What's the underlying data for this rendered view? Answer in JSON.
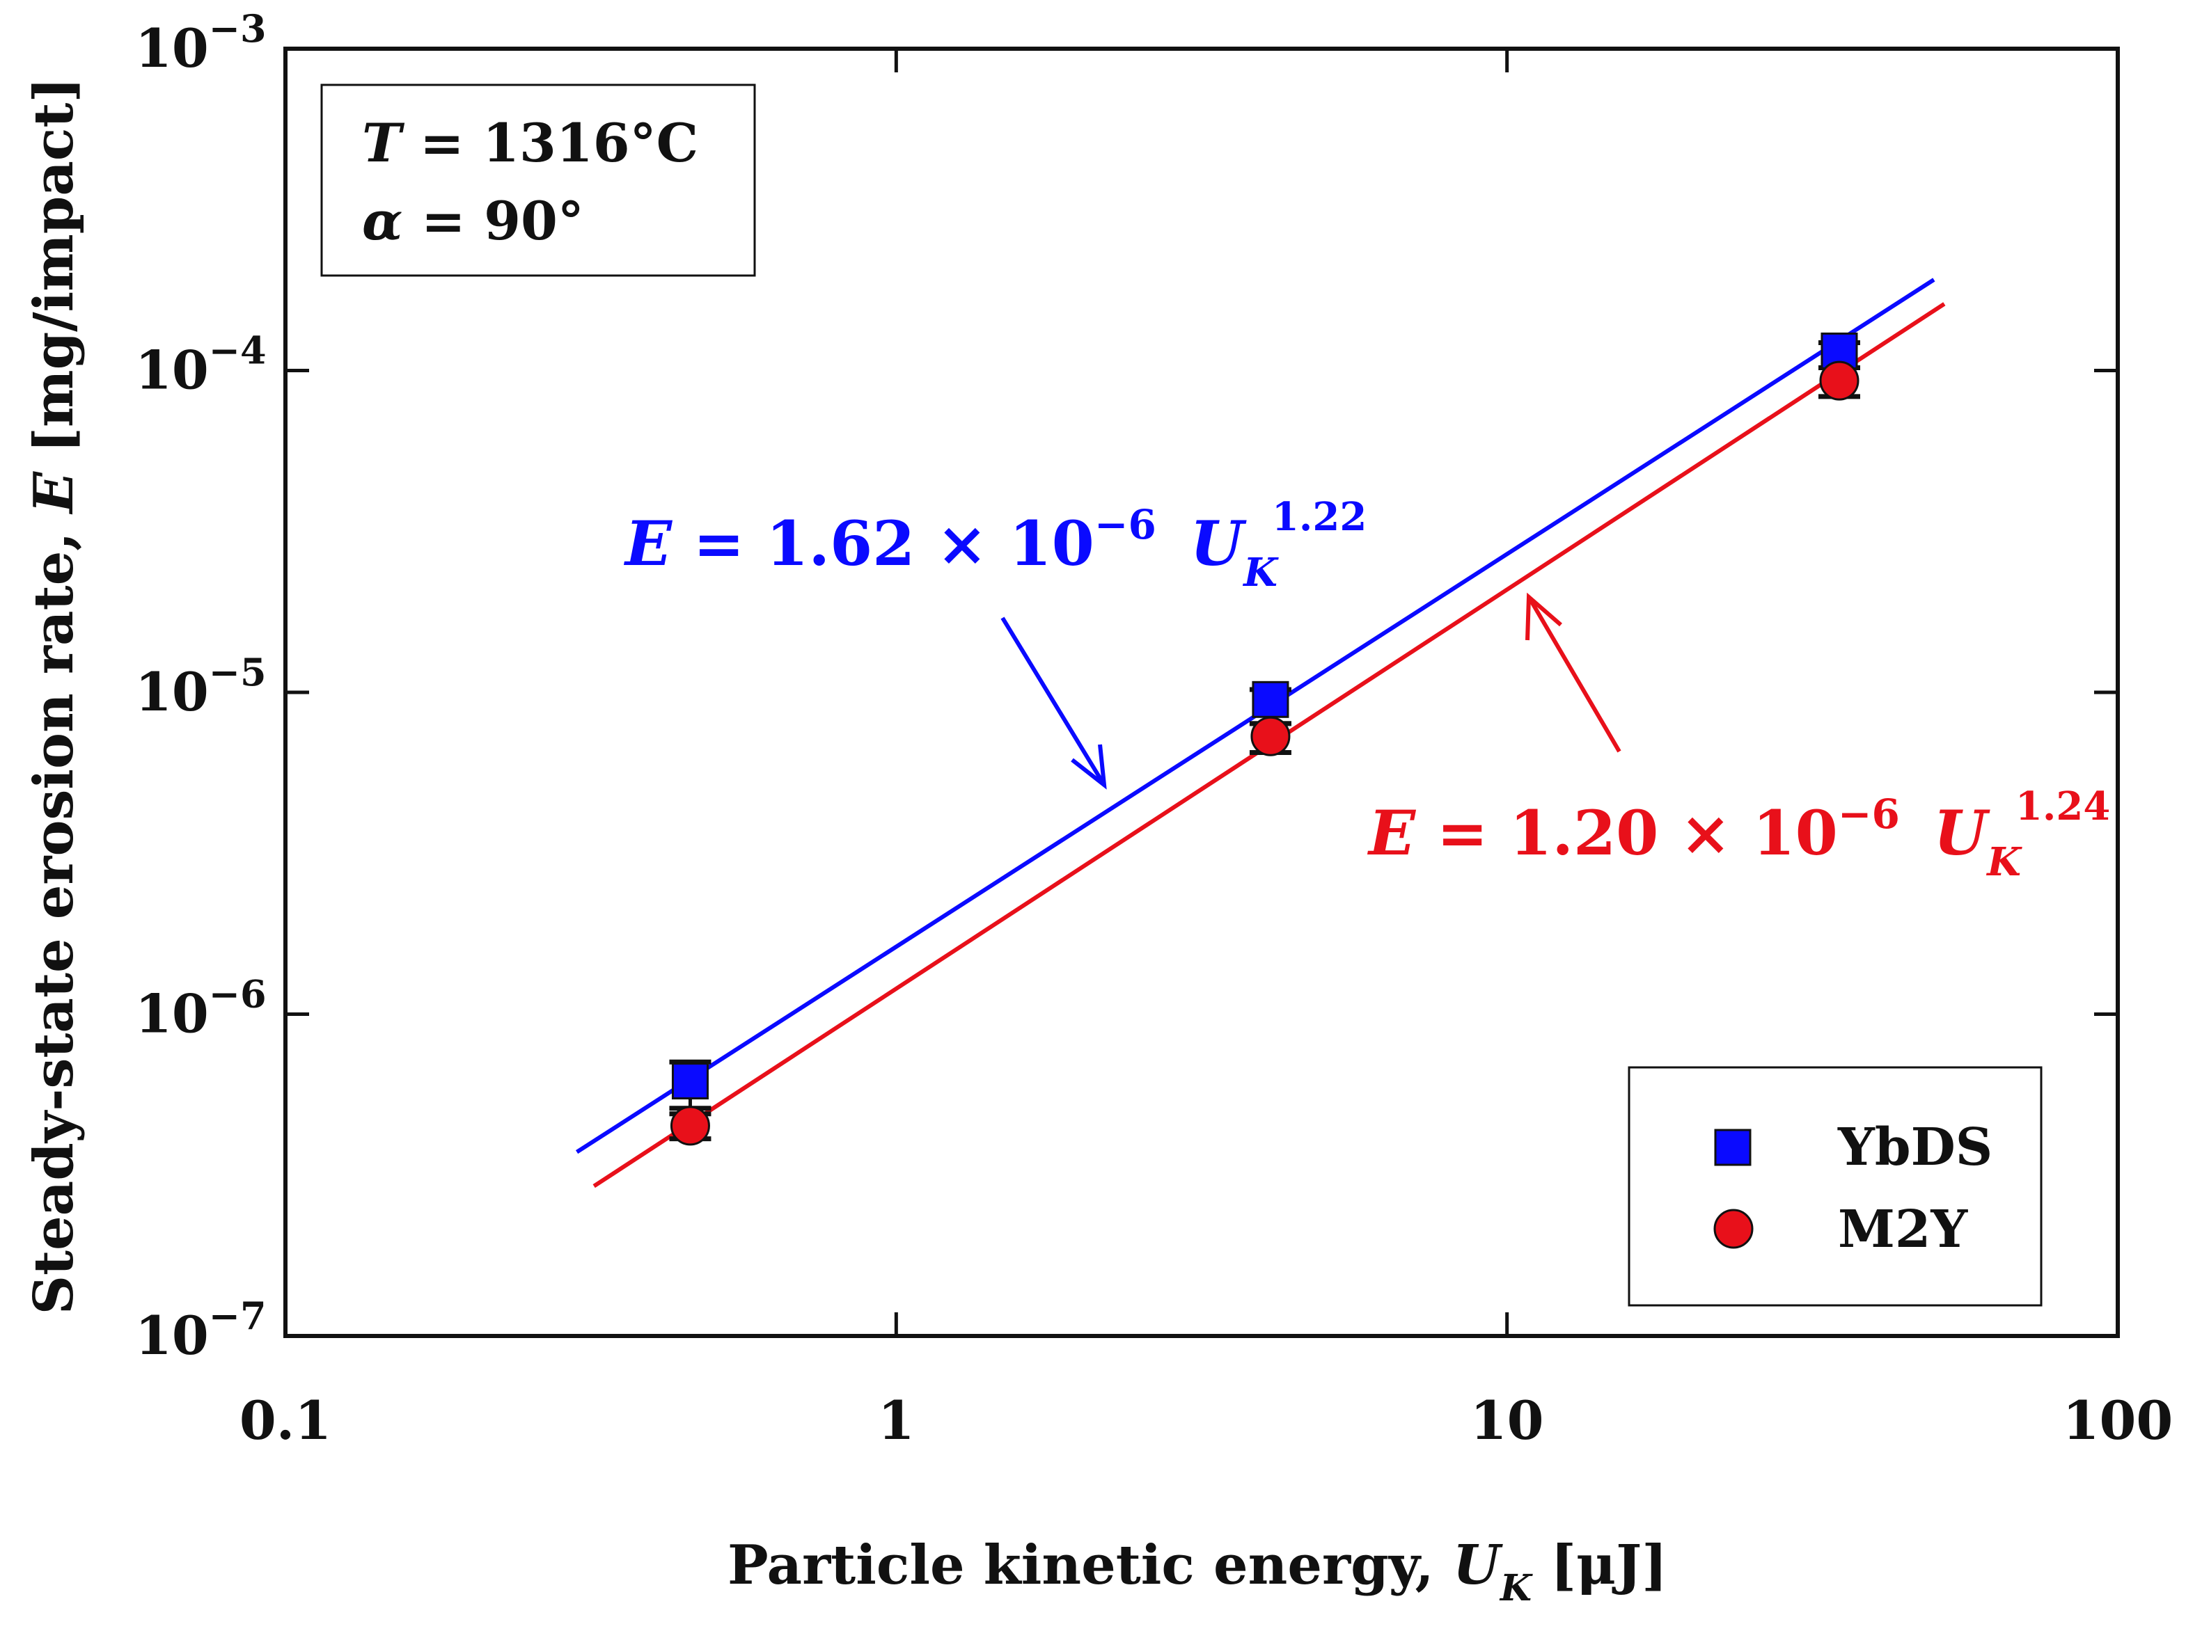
{
  "chart_data": {
    "type": "scatter",
    "x_scale": "log",
    "y_scale": "log",
    "xlim": [
      0.1,
      100
    ],
    "ylim": [
      1e-07,
      0.001
    ],
    "xlabel": {
      "prefix": "Particle kinetic energy, ",
      "var": "U",
      "sub": "K",
      "suffix": " [μJ]"
    },
    "ylabel": {
      "prefix": "Steady-state erosion rate, ",
      "var": "E",
      "suffix": " [mg/impact]"
    },
    "x_ticks": [
      {
        "value": 0.1,
        "label": "0.1"
      },
      {
        "value": 1,
        "label": "1"
      },
      {
        "value": 10,
        "label": "10"
      },
      {
        "value": 100,
        "label": "100"
      }
    ],
    "y_ticks": [
      {
        "value": 1e-07,
        "base": "10",
        "exp": "−7"
      },
      {
        "value": 1e-06,
        "base": "10",
        "exp": "−6"
      },
      {
        "value": 1e-05,
        "base": "10",
        "exp": "−5"
      },
      {
        "value": 0.0001,
        "base": "10",
        "exp": "−4"
      },
      {
        "value": 0.001,
        "base": "10",
        "exp": "−3"
      }
    ],
    "conditions": {
      "line1": {
        "var": "T",
        "text": " = 1316°C"
      },
      "line2": {
        "var": "α",
        "text": " = 90°"
      }
    },
    "series": [
      {
        "name": "YbDS",
        "marker": "square",
        "color": "#0a0aff",
        "x": [
          0.46,
          4.1,
          35
        ],
        "y": [
          6.2e-07,
          9.5e-06,
          0.000115
        ],
        "err_low": [
          5.1e-07,
          8e-06,
          0.000102
        ],
        "err_high": [
          7.1e-07,
          1.02e-05,
          0.000122
        ],
        "fit": {
          "coef": 1.62e-06,
          "exponent": 1.22,
          "x_range": [
            0.3,
            50
          ]
        },
        "equation": {
          "lhs": "E",
          "mid": " = 1.62 × 10",
          "exp": "−6",
          "var": "U",
          "sub": "K",
          "power": "1.22"
        }
      },
      {
        "name": "M2Y",
        "marker": "circle",
        "color": "#e8101a",
        "x": [
          0.46,
          4.1,
          35
        ],
        "y": [
          4.5e-07,
          7.3e-06,
          9.3e-05
        ],
        "err_low": [
          4.1e-07,
          6.5e-06,
          8.3e-05
        ],
        "err_high": [
          4.9e-07,
          8e-06,
          0.000102
        ],
        "fit": {
          "coef": 1.2e-06,
          "exponent": 1.24,
          "x_range": [
            0.32,
            52
          ]
        },
        "equation": {
          "lhs": "E",
          "mid": " = 1.20 × 10",
          "exp": "−6",
          "var": "U",
          "sub": "K",
          "power": "1.24"
        }
      }
    ],
    "legend": {
      "position": "bottom-right",
      "entries": [
        "YbDS",
        "M2Y"
      ]
    }
  }
}
